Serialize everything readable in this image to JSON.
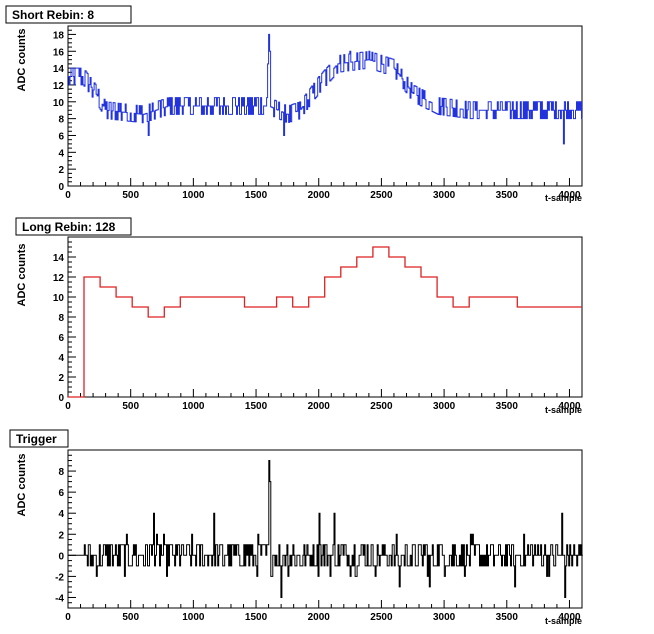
{
  "chart_data": [
    {
      "type": "line",
      "step": true,
      "title": "Short Rebin: 8",
      "xlabel": "t-sample",
      "ylabel": "ADC counts",
      "xlim": [
        0,
        4100
      ],
      "ylim": [
        0,
        19
      ],
      "xticks": [
        0,
        500,
        1000,
        1500,
        2000,
        2500,
        3000,
        3500,
        4000
      ],
      "yticks": [
        0,
        2,
        4,
        6,
        8,
        10,
        12,
        14,
        16,
        18
      ],
      "color": "#2233dd",
      "anchors": [
        [
          0,
          13
        ],
        [
          120,
          13
        ],
        [
          220,
          11
        ],
        [
          300,
          9
        ],
        [
          600,
          8.5
        ],
        [
          800,
          9.5
        ],
        [
          1500,
          9.5
        ],
        [
          1600,
          9.5
        ],
        [
          1750,
          8.5
        ],
        [
          1850,
          9
        ],
        [
          2000,
          12
        ],
        [
          2150,
          14.5
        ],
        [
          2400,
          15
        ],
        [
          2600,
          14
        ],
        [
          2750,
          11
        ],
        [
          2950,
          9.5
        ],
        [
          3200,
          9
        ],
        [
          3500,
          9
        ],
        [
          4100,
          9
        ]
      ],
      "noise": 1.4,
      "segment": 8,
      "spikes": [
        [
          1600,
          18
        ],
        [
          1610,
          16
        ],
        [
          1590,
          14.5
        ],
        [
          2250,
          16
        ],
        [
          2400,
          16
        ],
        [
          2500,
          16
        ],
        [
          3950,
          5
        ],
        [
          640,
          6
        ],
        [
          1720,
          6
        ]
      ]
    },
    {
      "type": "line",
      "step": true,
      "title": "Long Rebin: 128",
      "xlabel": "t-sample",
      "ylabel": "ADC counts",
      "xlim": [
        0,
        4100
      ],
      "ylim": [
        0,
        16
      ],
      "xticks": [
        0,
        500,
        1000,
        1500,
        2000,
        2500,
        3000,
        3500,
        4000
      ],
      "yticks": [
        0,
        2,
        4,
        6,
        8,
        10,
        12,
        14
      ],
      "color": "#dd2222",
      "steps": [
        [
          0,
          0
        ],
        [
          128,
          12
        ],
        [
          256,
          11
        ],
        [
          384,
          10
        ],
        [
          512,
          9
        ],
        [
          640,
          8
        ],
        [
          768,
          9
        ],
        [
          896,
          10
        ],
        [
          1024,
          10
        ],
        [
          1152,
          10
        ],
        [
          1280,
          10
        ],
        [
          1408,
          9
        ],
        [
          1536,
          9
        ],
        [
          1664,
          10
        ],
        [
          1792,
          9
        ],
        [
          1920,
          10
        ],
        [
          2048,
          12
        ],
        [
          2176,
          13
        ],
        [
          2304,
          14
        ],
        [
          2432,
          15
        ],
        [
          2560,
          14
        ],
        [
          2688,
          13
        ],
        [
          2816,
          12
        ],
        [
          2944,
          10
        ],
        [
          3072,
          9
        ],
        [
          3200,
          10
        ],
        [
          3328,
          10
        ],
        [
          3456,
          10
        ],
        [
          3584,
          9
        ],
        [
          3712,
          9
        ],
        [
          3840,
          9
        ],
        [
          3968,
          9
        ]
      ],
      "step_end": 4100
    },
    {
      "type": "line",
      "step": true,
      "title": "Trigger",
      "xlabel": "t-sample",
      "ylabel": "ADC counts",
      "xlim": [
        0,
        4100
      ],
      "ylim": [
        -5,
        10
      ],
      "xticks": [
        0,
        500,
        1000,
        1500,
        2000,
        2500,
        3000,
        3500,
        4000
      ],
      "yticks": [
        -4,
        -2,
        0,
        2,
        4,
        6,
        8
      ],
      "color": "#000000",
      "anchors": [
        [
          0,
          0
        ],
        [
          4100,
          0
        ]
      ],
      "noise": 1.6,
      "segment": 8,
      "start": 130,
      "spikes": [
        [
          1600,
          9
        ],
        [
          1610,
          7
        ],
        [
          1590,
          5
        ],
        [
          680,
          4
        ],
        [
          1160,
          4
        ],
        [
          2000,
          4
        ],
        [
          2120,
          4
        ],
        [
          3940,
          4
        ],
        [
          1700,
          -4
        ],
        [
          3960,
          -4
        ],
        [
          2640,
          -3
        ],
        [
          2880,
          -3
        ],
        [
          3560,
          -3
        ]
      ]
    }
  ]
}
